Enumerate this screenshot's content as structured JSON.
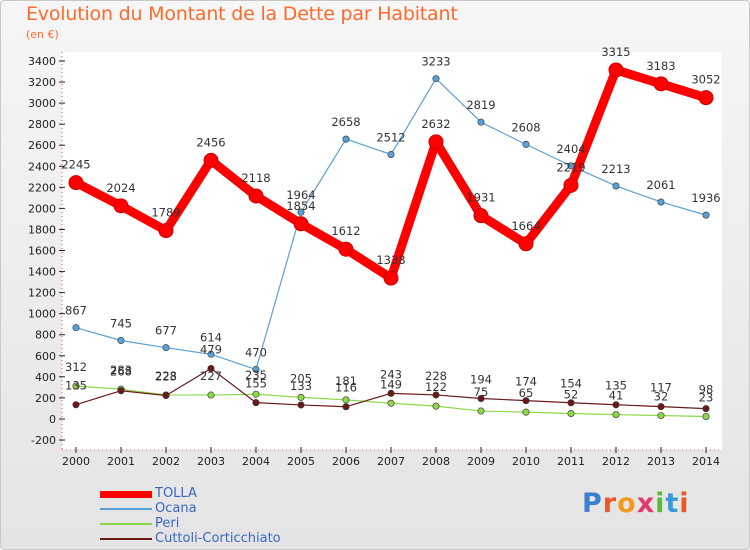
{
  "chart_data": {
    "type": "line",
    "title": "Evolution du Montant de la Dette par Habitant",
    "subtitle": "(en €)",
    "categories": [
      "2000",
      "2001",
      "2002",
      "2003",
      "2004",
      "2005",
      "2006",
      "2007",
      "2008",
      "2009",
      "2010",
      "2011",
      "2012",
      "2013",
      "2014"
    ],
    "ylim": [
      -200,
      3400
    ],
    "yticks": [
      -200,
      0,
      200,
      400,
      600,
      800,
      1000,
      1200,
      1400,
      1600,
      1800,
      2000,
      2200,
      2400,
      2600,
      2800,
      3000,
      3200,
      3400
    ],
    "series": [
      {
        "name": "TOLLA",
        "color": "#ff0000",
        "values": [
          2245,
          2024,
          1789,
          2456,
          2118,
          1854,
          1612,
          1338,
          2632,
          1931,
          1664,
          2219,
          3315,
          3183,
          3052
        ]
      },
      {
        "name": "Ocana",
        "color": "#5aa0d8",
        "values": [
          867,
          745,
          677,
          614,
          470,
          1964,
          2658,
          2512,
          3233,
          2819,
          2608,
          2404,
          2213,
          2061,
          1936
        ]
      },
      {
        "name": "Peri",
        "color": "#8cd84a",
        "values": [
          312,
          283,
          228,
          227,
          235,
          205,
          181,
          149,
          122,
          75,
          65,
          52,
          41,
          32,
          23
        ]
      },
      {
        "name": "Cuttoli-Corticchiato",
        "color": "#6b1a1a",
        "values": [
          135,
          268,
          223,
          479,
          155,
          133,
          116,
          243,
          228,
          194,
          174,
          154,
          135,
          117,
          98
        ]
      }
    ]
  },
  "logo": {
    "text": "Proxiti"
  }
}
